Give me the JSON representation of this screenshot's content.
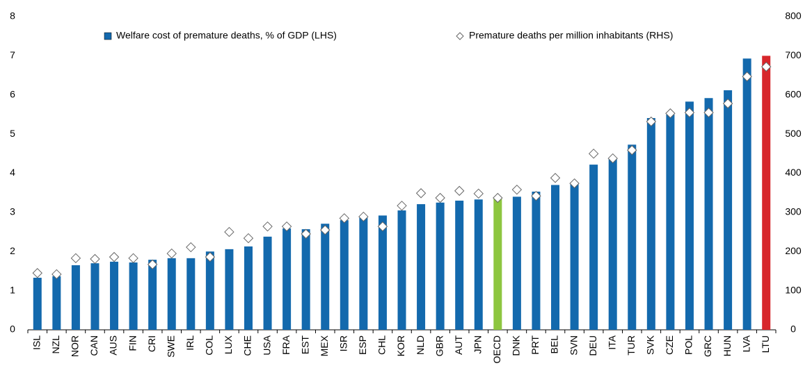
{
  "chart_data": {
    "type": "bar",
    "categories": [
      "ISL",
      "NZL",
      "NOR",
      "CAN",
      "AUS",
      "FIN",
      "CRI",
      "SWE",
      "IRL",
      "COL",
      "LUX",
      "CHE",
      "USA",
      "FRA",
      "EST",
      "MEX",
      "ISR",
      "ESP",
      "CHL",
      "KOR",
      "NLD",
      "GBR",
      "AUT",
      "JPN",
      "OECD",
      "DNK",
      "PRT",
      "BEL",
      "SVN",
      "DEU",
      "ITA",
      "TUR",
      "SVK",
      "CZE",
      "POL",
      "GRC",
      "HUN",
      "LVA",
      "LTU"
    ],
    "series": [
      {
        "name": "Welfare cost of premature deaths, % of GDP (LHS)",
        "type": "bar",
        "color": "#1369ad",
        "colors": [
          "#1369ad",
          "#1369ad",
          "#1369ad",
          "#1369ad",
          "#1369ad",
          "#1369ad",
          "#1369ad",
          "#1369ad",
          "#1369ad",
          "#1369ad",
          "#1369ad",
          "#1369ad",
          "#1369ad",
          "#1369ad",
          "#1369ad",
          "#1369ad",
          "#1369ad",
          "#1369ad",
          "#1369ad",
          "#1369ad",
          "#1369ad",
          "#1369ad",
          "#1369ad",
          "#1369ad",
          "#8dc63f",
          "#1369ad",
          "#1369ad",
          "#1369ad",
          "#1369ad",
          "#1369ad",
          "#1369ad",
          "#1369ad",
          "#1369ad",
          "#1369ad",
          "#1369ad",
          "#1369ad",
          "#1369ad",
          "#1369ad",
          "#d7262b"
        ],
        "values": [
          1.33,
          1.37,
          1.65,
          1.7,
          1.74,
          1.72,
          1.79,
          1.83,
          1.83,
          2.0,
          2.06,
          2.13,
          2.38,
          2.59,
          2.57,
          2.71,
          2.8,
          2.87,
          2.92,
          3.05,
          3.21,
          3.25,
          3.3,
          3.33,
          3.35,
          3.4,
          3.53,
          3.7,
          3.74,
          4.22,
          4.38,
          4.73,
          5.41,
          5.5,
          5.83,
          5.92,
          6.12,
          6.93,
          7.0
        ]
      },
      {
        "name": "Premature deaths per million inhabitants (RHS)",
        "type": "scatter",
        "axis": "y2",
        "color": "#ffffff",
        "values": [
          145,
          142,
          183,
          181,
          186,
          183,
          167,
          195,
          211,
          186,
          250,
          234,
          264,
          264,
          245,
          255,
          285,
          289,
          264,
          317,
          349,
          337,
          355,
          348,
          337,
          358,
          342,
          388,
          374,
          450,
          438,
          459,
          532,
          553,
          555,
          555,
          578,
          647,
          672
        ]
      }
    ],
    "ylim": [
      0,
      8
    ],
    "yticks": [
      0,
      1,
      2,
      3,
      4,
      5,
      6,
      7,
      8
    ],
    "y2lim": [
      0,
      800
    ],
    "y2ticks": [
      0,
      100,
      200,
      300,
      400,
      500,
      600,
      700,
      800
    ],
    "grid": false
  }
}
